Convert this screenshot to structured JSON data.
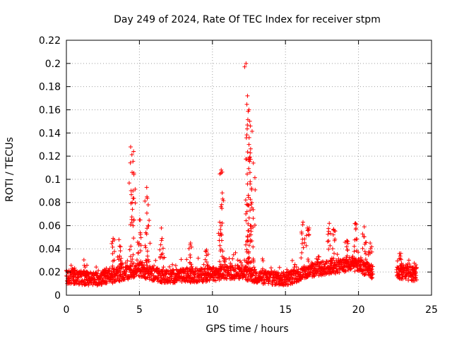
{
  "chart_data": {
    "type": "scatter",
    "title": "Day 249 of 2024, Rate Of TEC Index for receiver stpm",
    "xlabel": "GPS time / hours",
    "ylabel": "ROTI / TECUs",
    "xlim": [
      0,
      25
    ],
    "ylim": [
      0,
      0.22
    ],
    "x_ticks": [
      0,
      5,
      10,
      15,
      20,
      25
    ],
    "x_tick_labels": [
      "0",
      "5",
      "10",
      "15",
      "20",
      "25"
    ],
    "y_ticks": [
      0,
      0.02,
      0.04,
      0.06,
      0.08,
      0.1,
      0.12,
      0.14,
      0.16,
      0.18,
      0.2,
      0.22
    ],
    "y_tick_labels": [
      "0",
      "0.02",
      "0.04",
      "0.06",
      "0.08",
      "0.1",
      "0.12",
      "0.14",
      "0.16",
      "0.18",
      "0.2",
      "0.22"
    ],
    "grid": true,
    "marker": "+",
    "marker_color": "#ff0000",
    "data_gap_hours": [
      21.0,
      22.6
    ],
    "series": [
      {
        "name": "ROTI",
        "baseline": [
          [
            0,
            0.016
          ],
          [
            1,
            0.015
          ],
          [
            2,
            0.014
          ],
          [
            3,
            0.016
          ],
          [
            4,
            0.019
          ],
          [
            5,
            0.022
          ],
          [
            6,
            0.018
          ],
          [
            7,
            0.016
          ],
          [
            8,
            0.017
          ],
          [
            9,
            0.017
          ],
          [
            10,
            0.018
          ],
          [
            11,
            0.02
          ],
          [
            12,
            0.02
          ],
          [
            13,
            0.016
          ],
          [
            14,
            0.015
          ],
          [
            15,
            0.014
          ],
          [
            16,
            0.018
          ],
          [
            17,
            0.022
          ],
          [
            18,
            0.024
          ],
          [
            19,
            0.026
          ],
          [
            20,
            0.026
          ],
          [
            21,
            0.02
          ],
          [
            22.6,
            0.02
          ],
          [
            24,
            0.018
          ]
        ],
        "peaks": [
          {
            "x": 0.5,
            "y": 0.022
          },
          {
            "x": 1.2,
            "y": 0.021
          },
          {
            "x": 2.6,
            "y": 0.022
          },
          {
            "x": 3.2,
            "y": 0.049
          },
          {
            "x": 3.6,
            "y": 0.048
          },
          {
            "x": 4.4,
            "y": 0.128
          },
          {
            "x": 4.6,
            "y": 0.124
          },
          {
            "x": 4.5,
            "y": 0.106
          },
          {
            "x": 5.0,
            "y": 0.065
          },
          {
            "x": 5.5,
            "y": 0.093
          },
          {
            "x": 5.6,
            "y": 0.078
          },
          {
            "x": 6.5,
            "y": 0.058
          },
          {
            "x": 8.5,
            "y": 0.045
          },
          {
            "x": 9.6,
            "y": 0.039
          },
          {
            "x": 10.6,
            "y": 0.108
          },
          {
            "x": 10.7,
            "y": 0.083
          },
          {
            "x": 10.5,
            "y": 0.063
          },
          {
            "x": 12.3,
            "y": 0.2
          },
          {
            "x": 12.4,
            "y": 0.172
          },
          {
            "x": 12.5,
            "y": 0.16
          },
          {
            "x": 12.6,
            "y": 0.146
          },
          {
            "x": 12.5,
            "y": 0.13
          },
          {
            "x": 12.8,
            "y": 0.114
          },
          {
            "x": 12.4,
            "y": 0.096
          },
          {
            "x": 12.7,
            "y": 0.08
          },
          {
            "x": 12.6,
            "y": 0.06
          },
          {
            "x": 16.2,
            "y": 0.063
          },
          {
            "x": 16.5,
            "y": 0.058
          },
          {
            "x": 18.0,
            "y": 0.062
          },
          {
            "x": 18.3,
            "y": 0.057
          },
          {
            "x": 19.2,
            "y": 0.047
          },
          {
            "x": 19.8,
            "y": 0.062
          },
          {
            "x": 20.4,
            "y": 0.059
          },
          {
            "x": 20.8,
            "y": 0.045
          },
          {
            "x": 22.9,
            "y": 0.036
          },
          {
            "x": 23.8,
            "y": 0.023
          }
        ]
      }
    ]
  }
}
